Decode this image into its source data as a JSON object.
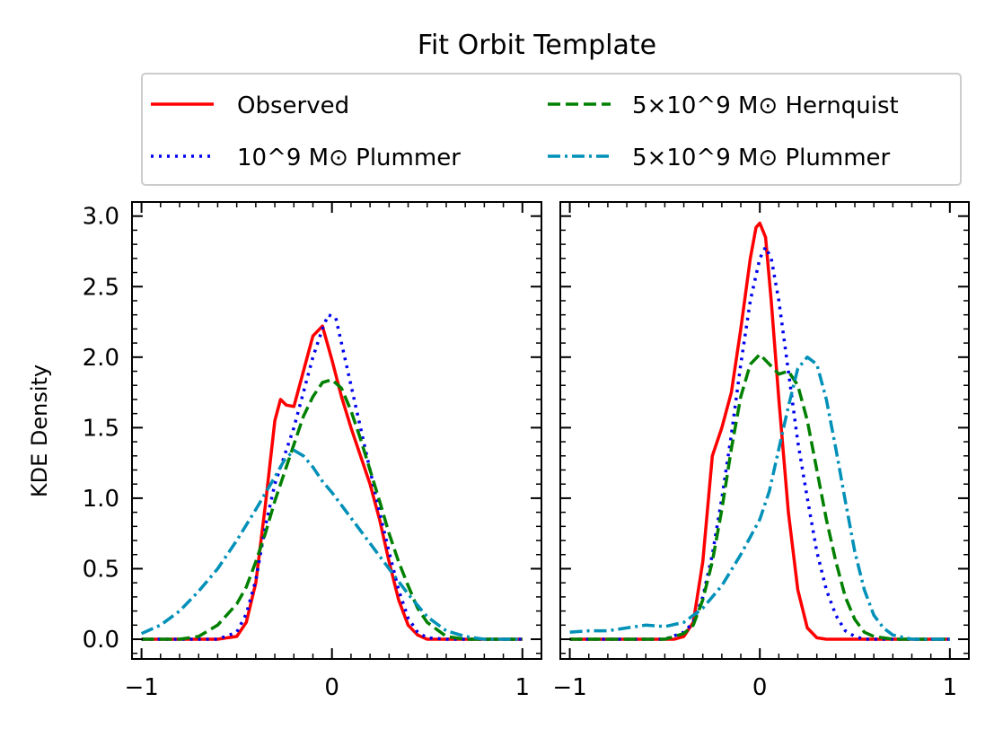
{
  "chart_data": {
    "type": "line",
    "title": "Fit Orbit Template",
    "ylabel": "KDE Density",
    "xlim": [
      -1.05,
      1.1
    ],
    "ylim": [
      -0.14,
      3.1
    ],
    "xticks": [
      -1,
      0,
      1
    ],
    "xtick_labels": [
      "−1",
      "0",
      "1"
    ],
    "yticks": [
      0.0,
      0.5,
      1.0,
      1.5,
      2.0,
      2.5,
      3.0
    ],
    "ytick_labels": [
      "0.0",
      "0.5",
      "1.0",
      "1.5",
      "2.0",
      "2.5",
      "3.0"
    ],
    "legend": {
      "placement": "top-center, above panels, 2 columns",
      "entries": [
        {
          "label": "Observed",
          "color": "#ff0000",
          "dash": "solid"
        },
        {
          "label": "10^9 M⊙ Plummer",
          "color": "#0000ee",
          "dash": "dotted"
        },
        {
          "label": "5×10^9 M⊙ Hernquist",
          "color": "#008000",
          "dash": "dashed"
        },
        {
          "label": "5×10^9 M⊙ Plummer",
          "color": "#0090b8",
          "dash": "dashdot"
        }
      ]
    },
    "panels": [
      {
        "name": "left",
        "series": [
          {
            "name": "Observed",
            "color": "#ff0000",
            "dash": "solid",
            "x": [
              -1.0,
              -0.6,
              -0.5,
              -0.45,
              -0.4,
              -0.35,
              -0.3,
              -0.27,
              -0.24,
              -0.2,
              -0.15,
              -0.1,
              -0.05,
              0.0,
              0.05,
              0.1,
              0.15,
              0.2,
              0.25,
              0.3,
              0.35,
              0.4,
              0.45,
              0.5,
              0.6,
              1.0
            ],
            "y": [
              0.0,
              0.0,
              0.02,
              0.12,
              0.4,
              0.95,
              1.55,
              1.7,
              1.66,
              1.65,
              1.9,
              2.15,
              2.22,
              1.98,
              1.72,
              1.5,
              1.3,
              1.1,
              0.85,
              0.55,
              0.28,
              0.1,
              0.03,
              0.0,
              0.0,
              0.0
            ]
          },
          {
            "name": "10^9 M⊙ Plummer",
            "color": "#0000ee",
            "dash": "dotted",
            "x": [
              -1.0,
              -0.6,
              -0.5,
              -0.45,
              -0.4,
              -0.35,
              -0.3,
              -0.25,
              -0.2,
              -0.15,
              -0.1,
              -0.05,
              -0.02,
              0.02,
              0.05,
              0.1,
              0.15,
              0.2,
              0.25,
              0.3,
              0.35,
              0.4,
              0.45,
              0.5,
              0.6,
              1.0
            ],
            "y": [
              0.0,
              0.0,
              0.05,
              0.18,
              0.42,
              0.8,
              1.1,
              1.3,
              1.5,
              1.75,
              2.0,
              2.2,
              2.3,
              2.28,
              2.1,
              1.8,
              1.5,
              1.2,
              0.9,
              0.62,
              0.35,
              0.15,
              0.05,
              0.01,
              0.0,
              0.0
            ]
          },
          {
            "name": "5×10^9 M⊙ Hernquist",
            "color": "#008000",
            "dash": "dashed",
            "x": [
              -1.0,
              -0.8,
              -0.7,
              -0.6,
              -0.5,
              -0.45,
              -0.4,
              -0.35,
              -0.3,
              -0.25,
              -0.2,
              -0.15,
              -0.1,
              -0.05,
              0.0,
              0.05,
              0.1,
              0.15,
              0.2,
              0.25,
              0.3,
              0.35,
              0.4,
              0.45,
              0.5,
              0.6,
              0.7,
              1.0
            ],
            "y": [
              0.0,
              0.0,
              0.02,
              0.1,
              0.25,
              0.37,
              0.55,
              0.75,
              0.98,
              1.18,
              1.38,
              1.58,
              1.72,
              1.82,
              1.84,
              1.78,
              1.62,
              1.42,
              1.2,
              0.98,
              0.75,
              0.55,
              0.38,
              0.22,
              0.12,
              0.02,
              0.0,
              0.0
            ]
          },
          {
            "name": "5×10^9 M⊙ Plummer",
            "color": "#0090b8",
            "dash": "dashdot",
            "x": [
              -1.0,
              -0.9,
              -0.8,
              -0.7,
              -0.6,
              -0.5,
              -0.4,
              -0.3,
              -0.25,
              -0.2,
              -0.15,
              -0.1,
              -0.05,
              0.0,
              0.1,
              0.2,
              0.3,
              0.4,
              0.5,
              0.6,
              0.7,
              0.8,
              1.0
            ],
            "y": [
              0.04,
              0.1,
              0.2,
              0.34,
              0.5,
              0.7,
              0.92,
              1.15,
              1.27,
              1.34,
              1.3,
              1.22,
              1.12,
              1.04,
              0.86,
              0.68,
              0.5,
              0.32,
              0.16,
              0.06,
              0.02,
              0.0,
              0.0
            ]
          }
        ]
      },
      {
        "name": "right",
        "series": [
          {
            "name": "Observed",
            "color": "#ff0000",
            "dash": "solid",
            "x": [
              -1.0,
              -0.45,
              -0.4,
              -0.35,
              -0.3,
              -0.25,
              -0.2,
              -0.15,
              -0.1,
              -0.05,
              -0.02,
              0.0,
              0.03,
              0.06,
              0.1,
              0.15,
              0.2,
              0.25,
              0.3,
              0.35,
              0.4,
              1.0
            ],
            "y": [
              0.0,
              0.0,
              0.02,
              0.12,
              0.55,
              1.3,
              1.5,
              1.75,
              2.2,
              2.7,
              2.92,
              2.95,
              2.85,
              2.4,
              1.7,
              0.9,
              0.35,
              0.08,
              0.01,
              0.0,
              0.0,
              0.0
            ]
          },
          {
            "name": "10^9 M⊙ Plummer",
            "color": "#0000ee",
            "dash": "dotted",
            "x": [
              -1.0,
              -0.5,
              -0.4,
              -0.35,
              -0.3,
              -0.25,
              -0.2,
              -0.15,
              -0.1,
              -0.05,
              0.0,
              0.03,
              0.06,
              0.1,
              0.15,
              0.2,
              0.25,
              0.3,
              0.35,
              0.4,
              0.45,
              0.5,
              0.55,
              1.0
            ],
            "y": [
              0.0,
              0.0,
              0.05,
              0.12,
              0.3,
              0.6,
              1.0,
              1.45,
              1.95,
              2.4,
              2.7,
              2.78,
              2.7,
              2.4,
              1.9,
              1.4,
              1.0,
              0.62,
              0.35,
              0.17,
              0.06,
              0.02,
              0.0,
              0.0
            ]
          },
          {
            "name": "5×10^9 M⊙ Hernquist",
            "color": "#008000",
            "dash": "dashed",
            "x": [
              -1.0,
              -0.5,
              -0.4,
              -0.35,
              -0.3,
              -0.25,
              -0.2,
              -0.15,
              -0.1,
              -0.05,
              0.0,
              0.05,
              0.1,
              0.15,
              0.2,
              0.25,
              0.3,
              0.35,
              0.4,
              0.45,
              0.5,
              0.55,
              0.6,
              0.7,
              1.0
            ],
            "y": [
              0.0,
              0.0,
              0.04,
              0.1,
              0.28,
              0.55,
              0.92,
              1.35,
              1.72,
              1.95,
              2.02,
              1.95,
              1.88,
              1.9,
              1.8,
              1.55,
              1.2,
              0.85,
              0.55,
              0.3,
              0.14,
              0.05,
              0.02,
              0.0,
              0.0
            ]
          },
          {
            "name": "5×10^9 M⊙ Plummer",
            "color": "#0090b8",
            "dash": "dashdot",
            "x": [
              -1.0,
              -0.9,
              -0.8,
              -0.7,
              -0.6,
              -0.5,
              -0.4,
              -0.3,
              -0.2,
              -0.1,
              0.0,
              0.05,
              0.1,
              0.15,
              0.2,
              0.25,
              0.3,
              0.35,
              0.4,
              0.45,
              0.5,
              0.55,
              0.6,
              0.65,
              0.7,
              0.8,
              1.0
            ],
            "y": [
              0.05,
              0.06,
              0.06,
              0.08,
              0.1,
              0.09,
              0.12,
              0.22,
              0.38,
              0.6,
              0.85,
              1.05,
              1.35,
              1.65,
              1.92,
              2.0,
              1.95,
              1.7,
              1.35,
              0.98,
              0.62,
              0.35,
              0.17,
              0.08,
              0.03,
              0.0,
              0.0
            ]
          }
        ]
      }
    ]
  }
}
